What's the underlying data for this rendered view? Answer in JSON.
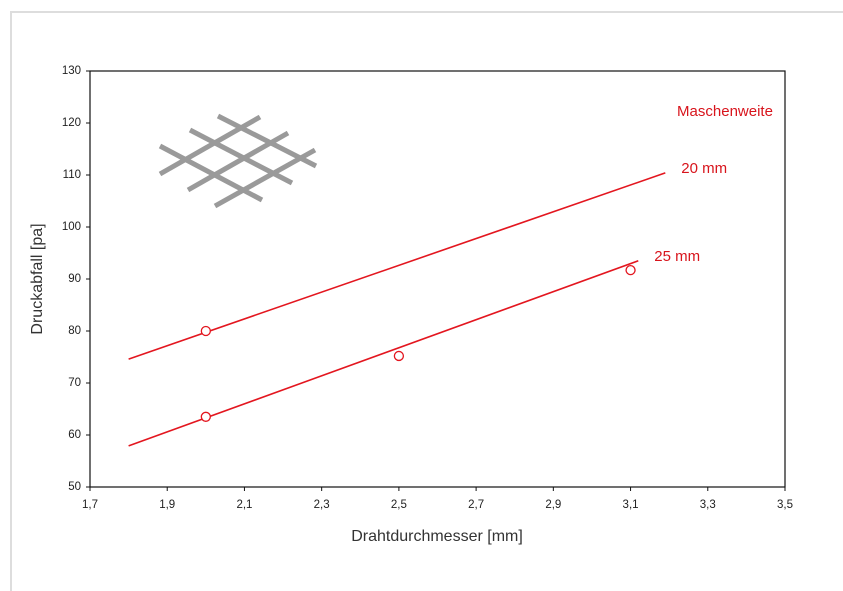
{
  "chart_data": {
    "type": "line",
    "x_label": "Drahtdurchmesser [mm]",
    "y_label": "Druckabfall [pa]",
    "legend_title": "Maschenweite",
    "xlim": [
      1.7,
      3.5
    ],
    "xticks": [
      {
        "value": 1.7,
        "label": "1,7"
      },
      {
        "value": 1.9,
        "label": "1,9"
      },
      {
        "value": 2.1,
        "label": "2,1"
      },
      {
        "value": 2.3,
        "label": "2,3"
      },
      {
        "value": 2.5,
        "label": "2,5"
      },
      {
        "value": 2.7,
        "label": "2,7"
      },
      {
        "value": 2.9,
        "label": "2,9"
      },
      {
        "value": 3.1,
        "label": "3,1"
      },
      {
        "value": 3.3,
        "label": "3,3"
      },
      {
        "value": 3.5,
        "label": "3,5"
      }
    ],
    "ylim": [
      50,
      130
    ],
    "yticks": [
      50,
      60,
      70,
      80,
      90,
      100,
      110,
      120,
      130
    ],
    "series": [
      {
        "name": "20 mm",
        "color": "#e3161f",
        "x": [
          1.8,
          3.19
        ],
        "values": [
          74.6,
          110.4
        ],
        "marker_x": [
          2.0
        ],
        "marker_values": [
          80.0
        ]
      },
      {
        "name": "25 mm",
        "color": "#e3161f",
        "x": [
          1.8,
          3.12
        ],
        "values": [
          57.9,
          93.5
        ],
        "marker_x": [
          2.0,
          2.5,
          3.1
        ],
        "marker_values": [
          63.5,
          75.2,
          91.7
        ]
      }
    ]
  }
}
